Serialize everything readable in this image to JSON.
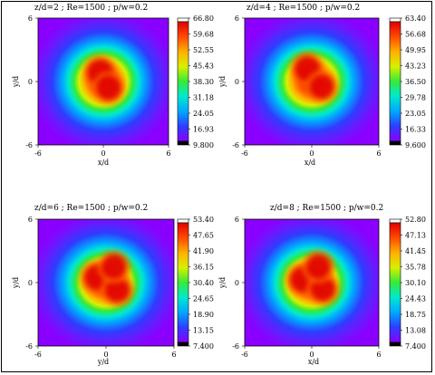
{
  "chart_data": [
    {
      "type": "heatmap",
      "title": "z/d=2 ; Re=1500 ; p/w=0.2",
      "xlabel": "x/d",
      "ylabel": "y/d",
      "xlim": [
        -6,
        6
      ],
      "ylim": [
        -6,
        6
      ],
      "x_ticks": [
        "-6",
        "0",
        "6"
      ],
      "y_ticks": [
        "6",
        "0",
        "-6"
      ],
      "colorbar_ticks": [
        "66.80",
        "59.68",
        "52.55",
        "45.43",
        "38.30",
        "31.18",
        "24.05",
        "16.93",
        "9.800"
      ],
      "range": [
        9.8,
        66.8
      ],
      "peaks": [
        {
          "x": -0.3,
          "y": 0.9,
          "value": 66.8
        },
        {
          "x": 0.5,
          "y": -0.6,
          "value": 62.0
        }
      ]
    },
    {
      "type": "heatmap",
      "title": "z/d=4 ; Re=1500 ; p/w=0.2",
      "xlabel": "x/d",
      "ylabel": "y/d",
      "xlim": [
        -6,
        6
      ],
      "ylim": [
        -6,
        6
      ],
      "x_ticks": [
        "-6",
        "0",
        "6"
      ],
      "y_ticks": [
        "6",
        "0",
        "-6"
      ],
      "colorbar_ticks": [
        "63.40",
        "56.68",
        "49.95",
        "43.23",
        "36.50",
        "29.78",
        "23.05",
        "16.33",
        "9.600"
      ],
      "range": [
        9.6,
        63.4
      ],
      "peaks": [
        {
          "x": -0.4,
          "y": 1.2,
          "value": 63.4
        },
        {
          "x": 0.9,
          "y": -0.5,
          "value": 57.0
        }
      ]
    },
    {
      "type": "heatmap",
      "title": "z/d=6 ; Re=1500 ; p/w=0.2",
      "xlabel": "y/d",
      "ylabel": "y/d",
      "xlim": [
        -6,
        6
      ],
      "ylim": [
        -6,
        6
      ],
      "x_ticks": [
        "-6",
        "0",
        "6"
      ],
      "y_ticks": [
        "6",
        "0",
        "-6"
      ],
      "colorbar_ticks": [
        "53.40",
        "47.65",
        "41.90",
        "36.15",
        "30.40",
        "24.65",
        "18.90",
        "13.15",
        "7.400"
      ],
      "range": [
        7.4,
        53.4
      ],
      "peaks": [
        {
          "x": -0.8,
          "y": 0.5,
          "value": 53.4
        },
        {
          "x": 1.0,
          "y": -0.7,
          "value": 50.0
        },
        {
          "x": 0.7,
          "y": 1.5,
          "value": 49.0
        }
      ]
    },
    {
      "type": "heatmap",
      "title": "z/d=8 ; Re=1500 ; p/w=0.2",
      "xlabel": "x/d",
      "ylabel": "y/d",
      "xlim": [
        -6,
        6
      ],
      "ylim": [
        -6,
        6
      ],
      "x_ticks": [
        "-6",
        "0",
        "6"
      ],
      "y_ticks": [
        "6",
        "0",
        "-6"
      ],
      "colorbar_ticks": [
        "52.80",
        "47.13",
        "41.45",
        "35.78",
        "30.10",
        "24.43",
        "18.75",
        "13.08",
        "7.400"
      ],
      "range": [
        7.4,
        52.8
      ],
      "peaks": [
        {
          "x": -0.8,
          "y": 0.3,
          "value": 52.8
        },
        {
          "x": 1.0,
          "y": -0.6,
          "value": 49.0
        },
        {
          "x": 0.6,
          "y": 1.5,
          "value": 48.0
        }
      ]
    }
  ],
  "colors": {
    "scale": [
      "#8a00ff",
      "#2f3cff",
      "#00a8ff",
      "#00e8d0",
      "#35ea3a",
      "#d8f000",
      "#ffb000",
      "#ff4a00",
      "#e00000"
    ],
    "top_swatch": "#ffffff",
    "bottom_swatch": "#000000"
  }
}
